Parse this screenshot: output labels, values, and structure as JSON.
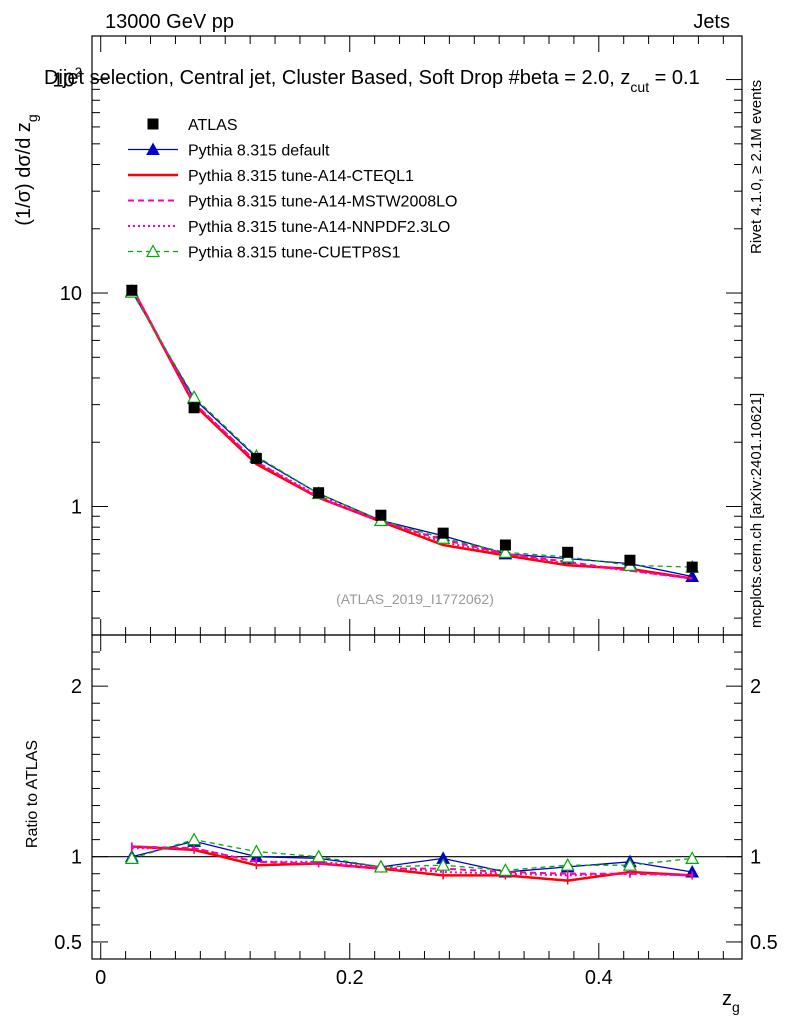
{
  "header": {
    "energy_label": "13000 GeV pp",
    "process_label": "Jets",
    "selection_title": "Dijet selection, Central jet, Cluster Based, Soft Drop #beta = 2.0, z_cut = 0.1",
    "watermark": "(ATLAS_2019_I1772062)",
    "side_rivet": "Rivet 4.1.0, ≥ 2.1M events",
    "side_mcplots": "mcplots.cern.ch [arXiv:2401.10621]"
  },
  "axes": {
    "main_ylabel": "(1/σ) dσ/d z_g",
    "ratio_ylabel": "Ratio to ATLAS",
    "xlabel": "z_g",
    "main_ylim": [
      0.25,
      160
    ],
    "ratio_ylim": [
      0.4,
      2.3
    ],
    "xlim": [
      -0.007,
      0.515
    ],
    "main_yticks": [
      {
        "value": 1,
        "label": "1"
      },
      {
        "value": 10,
        "label": "10"
      },
      {
        "value": 100,
        "label": "10^2"
      }
    ],
    "ratio_yticks": [
      {
        "value": 0.5,
        "label": "0.5"
      },
      {
        "value": 1,
        "label": "1"
      },
      {
        "value": 2,
        "label": "2"
      }
    ],
    "xticks": [
      {
        "value": 0,
        "label": "0"
      },
      {
        "value": 0.2,
        "label": "0.2"
      },
      {
        "value": 0.4,
        "label": "0.4"
      }
    ]
  },
  "chart_data": {
    "type": "scatter",
    "log_y": true,
    "x": [
      0.025,
      0.075,
      0.125,
      0.175,
      0.225,
      0.275,
      0.325,
      0.375,
      0.425,
      0.475
    ],
    "series": [
      {
        "name": "ATLAS",
        "color": "#000000",
        "style": "data",
        "values": [
          10.3,
          2.9,
          1.68,
          1.16,
          0.91,
          0.75,
          0.66,
          0.61,
          0.56,
          0.52
        ],
        "ratio": [
          1,
          1,
          1,
          1,
          1,
          1,
          1,
          1,
          1,
          1
        ]
      },
      {
        "name": "Pythia 8.315 default",
        "color": "#0000cc",
        "style": "solid-thin",
        "marker": "filled-triangle",
        "values": [
          10.2,
          3.2,
          1.7,
          1.15,
          0.86,
          0.73,
          0.6,
          0.57,
          0.54,
          0.47
        ],
        "ratio": [
          1.0,
          1.09,
          1.0,
          0.99,
          0.94,
          0.99,
          0.91,
          0.94,
          0.97,
          0.91
        ]
      },
      {
        "name": "Pythia 8.315 tune-A14-CTEQL1",
        "color": "#ff0000",
        "style": "solid-thick",
        "marker": "none",
        "values": [
          10.6,
          3.0,
          1.58,
          1.1,
          0.85,
          0.66,
          0.59,
          0.53,
          0.51,
          0.46
        ],
        "ratio": [
          1.06,
          1.04,
          0.95,
          0.96,
          0.93,
          0.89,
          0.89,
          0.86,
          0.91,
          0.89
        ]
      },
      {
        "name": "Pythia 8.315 tune-A14-MSTW2008LO",
        "color": "#ff00aa",
        "style": "dashed",
        "marker": "none",
        "values": [
          10.7,
          3.05,
          1.62,
          1.1,
          0.85,
          0.7,
          0.6,
          0.55,
          0.5,
          0.46
        ],
        "ratio": [
          1.06,
          1.05,
          0.97,
          0.96,
          0.93,
          0.93,
          0.91,
          0.9,
          0.9,
          0.89
        ]
      },
      {
        "name": "Pythia 8.315 tune-A14-NNPDF2.3LO",
        "color": "#ff00aa",
        "style": "dotted",
        "marker": "none",
        "values": [
          10.6,
          3.05,
          1.62,
          1.12,
          0.86,
          0.68,
          0.6,
          0.54,
          0.5,
          0.46
        ],
        "ratio": [
          1.05,
          1.05,
          0.97,
          0.97,
          0.94,
          0.91,
          0.9,
          0.89,
          0.9,
          0.89
        ]
      },
      {
        "name": "Pythia 8.315 tune-CUETP8S1",
        "color": "#00aa00",
        "style": "dashed-thin",
        "marker": "open-triangle",
        "values": [
          10.1,
          3.25,
          1.72,
          1.15,
          0.86,
          0.71,
          0.61,
          0.58,
          0.53,
          0.52
        ],
        "ratio": [
          0.99,
          1.1,
          1.03,
          1.0,
          0.94,
          0.95,
          0.92,
          0.95,
          0.95,
          0.99
        ]
      }
    ]
  }
}
